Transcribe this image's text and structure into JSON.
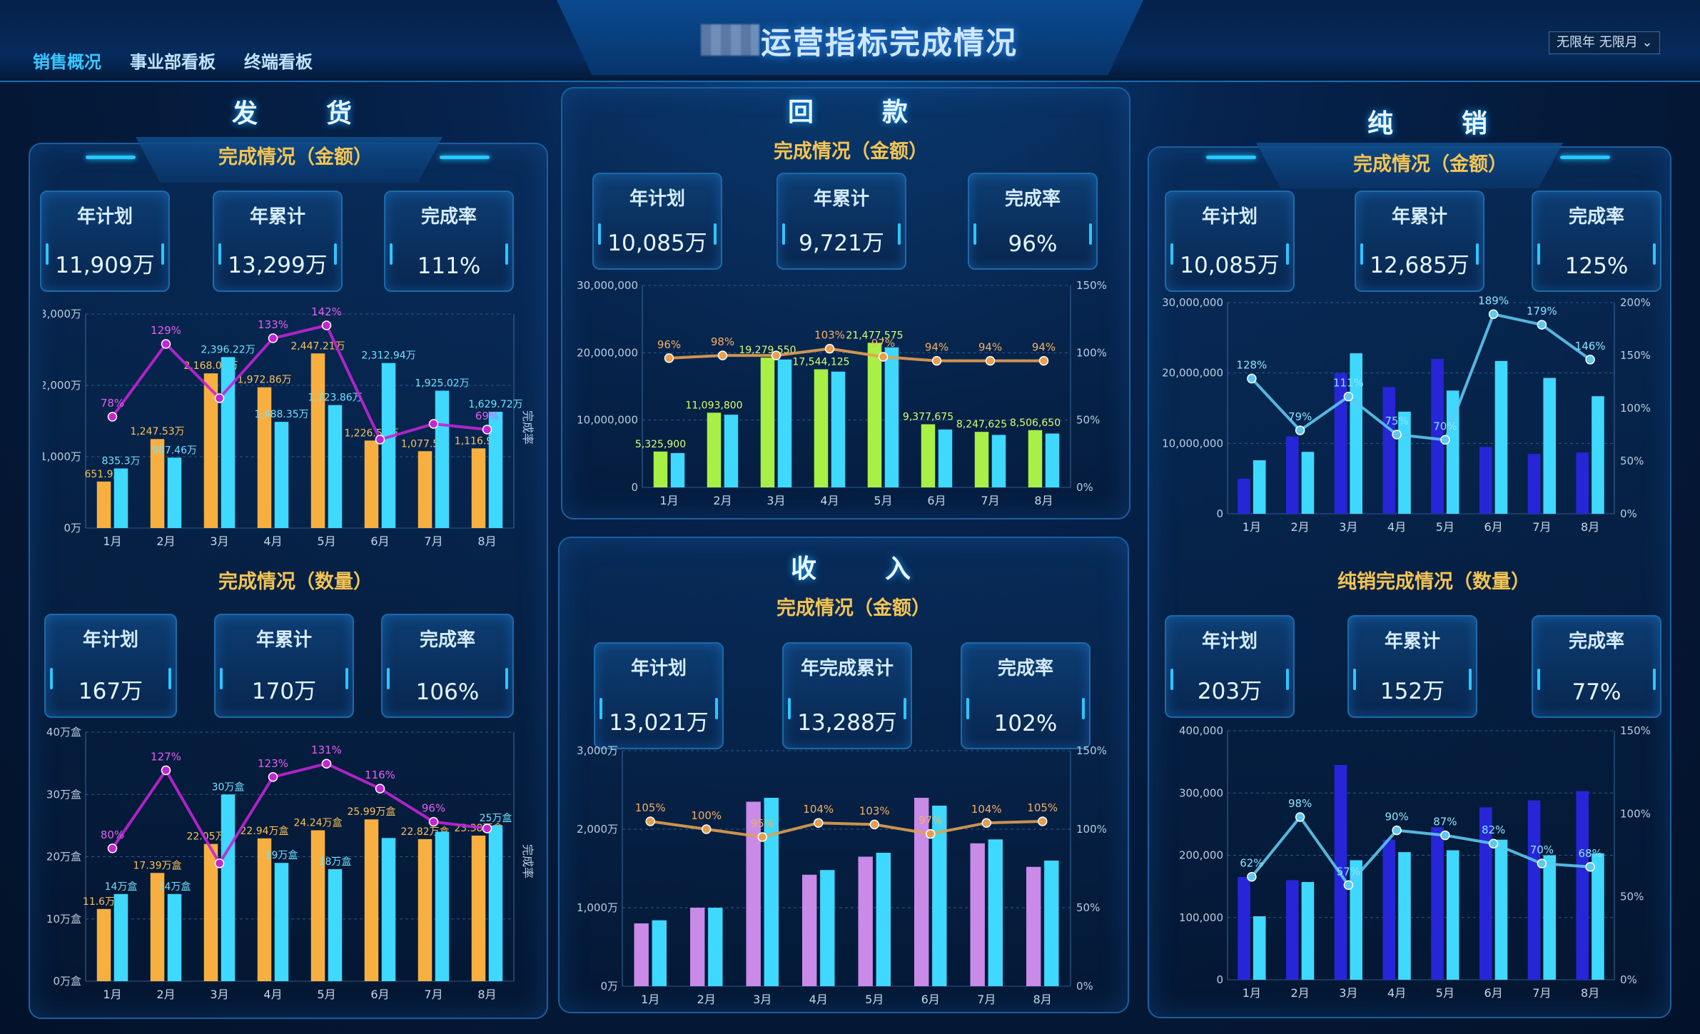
{
  "header": {
    "title": "运营指标完成情况",
    "tabs": [
      "销售概况",
      "事业部看板",
      "终端看板"
    ],
    "filter": {
      "year": "无限年",
      "month": "无限月"
    }
  },
  "fh": {
    "title": "发　货",
    "amt": {
      "title": "完成情况（金额）",
      "kpis": [
        {
          "label": "年计划",
          "value": "11,909万"
        },
        {
          "label": "年累计",
          "value": "13,299万"
        },
        {
          "label": "完成率",
          "value": "111%"
        }
      ]
    },
    "qty": {
      "title": "完成情况（数量）",
      "kpis": [
        {
          "label": "年计划",
          "value": "167万"
        },
        {
          "label": "年累计",
          "value": "170万"
        },
        {
          "label": "完成率",
          "value": "106%"
        }
      ]
    }
  },
  "hk": {
    "title": "回　款",
    "sub": "完成情况（金额）",
    "kpis": [
      {
        "label": "年计划",
        "value": "10,085万"
      },
      {
        "label": "年累计",
        "value": "9,721万"
      },
      {
        "label": "完成率",
        "value": "96%"
      }
    ]
  },
  "sr": {
    "title": "收　入",
    "sub": "完成情况（金额）",
    "kpis": [
      {
        "label": "年计划",
        "value": "13,021万"
      },
      {
        "label": "年完成累计",
        "value": "13,288万"
      },
      {
        "label": "完成率",
        "value": "102%"
      }
    ]
  },
  "cx": {
    "title": "纯　销",
    "amt": {
      "title": "完成情况（金额）",
      "kpis": [
        {
          "label": "年计划",
          "value": "10,085万"
        },
        {
          "label": "年累计",
          "value": "12,685万"
        },
        {
          "label": "完成率",
          "value": "125%"
        }
      ]
    },
    "qty": {
      "title": "纯销完成情况（数量）",
      "kpis": [
        {
          "label": "年计划",
          "value": "203万"
        },
        {
          "label": "年累计",
          "value": "152万"
        },
        {
          "label": "完成率",
          "value": "77%"
        }
      ]
    }
  },
  "chart_data": [
    {
      "id": "fh_amt",
      "type": "bar",
      "categories": [
        "1月",
        "2月",
        "3月",
        "4月",
        "5月",
        "6月",
        "7月",
        "8月"
      ],
      "yticks": [
        "0万",
        "1,000万",
        "2,000万",
        "3,000万"
      ],
      "ymax": 3000,
      "y2label": "完成率",
      "colors": [
        "#f7b040",
        "#3fd8ff"
      ],
      "line_color": "#c224d6",
      "series": [
        {
          "values": [
            651.9,
            1247.53,
            2168.06,
            1972.86,
            2447.21,
            1226.52,
            1077.5,
            1116.9
          ]
        },
        {
          "values": [
            835.3,
            987.46,
            2396.22,
            1488.35,
            1723.86,
            2312.94,
            1925.02,
            1629.72
          ]
        }
      ],
      "labels": [
        [
          "651.9万",
          "1,247.53万",
          "2,168.06万",
          "1,972.86万",
          "2,447.21万",
          "1,226.52万",
          "1,077.5万",
          "1,116.9万"
        ],
        [
          "835.3万",
          "987.46万",
          "2,396.22万",
          "1,488.35万",
          "1,723.86万",
          "2,312.94万",
          "1,925.02万",
          "1,629.72万"
        ]
      ],
      "rate": [
        78,
        129,
        91,
        133,
        142,
        62,
        73,
        69
      ],
      "rate_labels": [
        "78%",
        "129%",
        "",
        "133%",
        "142%",
        "",
        "",
        "69%"
      ],
      "ymax2": 150
    },
    {
      "id": "fh_qty",
      "type": "bar",
      "categories": [
        "1月",
        "2月",
        "3月",
        "4月",
        "5月",
        "6月",
        "7月",
        "8月"
      ],
      "yticks": [
        "0万盒",
        "10万盒",
        "20万盒",
        "30万盒",
        "40万盒"
      ],
      "ymax": 40,
      "y2label": "完成率",
      "colors": [
        "#f7b040",
        "#3fd8ff"
      ],
      "line_color": "#c224d6",
      "series": [
        {
          "values": [
            11.6,
            17.39,
            22.05,
            22.94,
            24.24,
            25.99,
            22.82,
            23.38
          ]
        },
        {
          "values": [
            14,
            14,
            30,
            19,
            18,
            23,
            24,
            25
          ]
        }
      ],
      "labels": [
        [
          "11.6万盒",
          "17.39万盒",
          "22.05万盒",
          "22.94万盒",
          "24.24万盒",
          "25.99万盒",
          "22.82万盒",
          "23.38万盒"
        ],
        [
          "14万盒",
          "14万盒",
          "30万盒",
          "19万盒",
          "18万盒",
          "",
          "",
          "25万盒"
        ]
      ],
      "rate": [
        80,
        127,
        71,
        123,
        131,
        116,
        96,
        92
      ],
      "rate_labels": [
        "80%",
        "127%",
        "",
        "123%",
        "131%",
        "116%",
        "96%",
        ""
      ],
      "ymax2": 150
    },
    {
      "id": "hk",
      "type": "bar",
      "categories": [
        "1月",
        "2月",
        "3月",
        "4月",
        "5月",
        "6月",
        "7月",
        "8月"
      ],
      "yticks": [
        "0",
        "10,000,000",
        "20,000,000",
        "30,000,000"
      ],
      "ymax": 30000000,
      "y2ticks": [
        "0%",
        "50%",
        "100%",
        "150%"
      ],
      "colors": [
        "#a8f045",
        "#3fd8ff"
      ],
      "line_color": "#e8a050",
      "series": [
        {
          "values": [
            5325900,
            11093800,
            19279550,
            17544125,
            21477575,
            9377675,
            8247625,
            8506650
          ]
        },
        {
          "values": [
            5100000,
            10800000,
            19000000,
            17200000,
            20800000,
            8600000,
            7800000,
            8000000
          ]
        }
      ],
      "labels": [
        [
          "5,325,900",
          "11,093,800",
          "19,279,550",
          "17,544,125",
          "21,477,575",
          "9,377,675",
          "8,247,625",
          "8,506,650"
        ],
        []
      ],
      "rate": [
        96,
        98,
        98,
        103,
        97,
        94,
        94,
        94
      ],
      "rate_labels": [
        "96%",
        "98%",
        "",
        "103%",
        "97%",
        "94%",
        "94%",
        "94%"
      ],
      "ymax2": 150
    },
    {
      "id": "sr",
      "type": "bar",
      "categories": [
        "1月",
        "2月",
        "3月",
        "4月",
        "5月",
        "6月",
        "7月",
        "8月"
      ],
      "yticks": [
        "0万",
        "1,000万",
        "2,000万",
        "3,000万"
      ],
      "ymax": 3000,
      "y2ticks": [
        "0%",
        "50%",
        "100%",
        "150%"
      ],
      "colors": [
        "#c98ae8",
        "#3fd8ff"
      ],
      "line_color": "#e0a050",
      "series": [
        {
          "values": [
            800,
            1000,
            2350,
            1420,
            1650,
            2400,
            1820,
            1520
          ]
        },
        {
          "values": [
            840,
            1000,
            2400,
            1480,
            1700,
            2300,
            1870,
            1600
          ]
        }
      ],
      "labels": [
        [],
        []
      ],
      "rate": [
        105,
        100,
        95,
        104,
        103,
        97,
        104,
        105
      ],
      "rate_labels": [
        "105%",
        "100%",
        "95%",
        "104%",
        "103%",
        "97%",
        "104%",
        "105%"
      ],
      "ymax2": 150
    },
    {
      "id": "cx_amt",
      "type": "bar",
      "categories": [
        "1月",
        "2月",
        "3月",
        "4月",
        "5月",
        "6月",
        "7月",
        "8月"
      ],
      "yticks": [
        "0",
        "10,000,000",
        "20,000,000",
        "30,000,000"
      ],
      "ymax": 30000000,
      "y2ticks": [
        "0%",
        "50%",
        "100%",
        "150%",
        "200%"
      ],
      "colors": [
        "#2626d8",
        "#3fd8ff"
      ],
      "line_color": "#5ec8f0",
      "series": [
        {
          "values": [
            5000000,
            11000000,
            20000000,
            18000000,
            22000000,
            9500000,
            8500000,
            8700000
          ]
        },
        {
          "values": [
            7600000,
            8800000,
            22800000,
            14500000,
            17500000,
            21700000,
            19300000,
            16700000
          ]
        }
      ],
      "labels": [
        [],
        []
      ],
      "rate": [
        128,
        79,
        111,
        75,
        70,
        189,
        179,
        146
      ],
      "rate_labels": [
        "128%",
        "79%",
        "111%",
        "75%",
        "70%",
        "189%",
        "179%",
        "146%"
      ],
      "ymax2": 200
    },
    {
      "id": "cx_qty",
      "type": "bar",
      "categories": [
        "1月",
        "2月",
        "3月",
        "4月",
        "5月",
        "6月",
        "7月",
        "8月"
      ],
      "yticks": [
        "0",
        "100,000",
        "200,000",
        "300,000",
        "400,000"
      ],
      "ymax": 400000,
      "y2ticks": [
        "0%",
        "50%",
        "100%",
        "150%"
      ],
      "colors": [
        "#2626d8",
        "#3fd8ff"
      ],
      "line_color": "#5ec8f0",
      "series": [
        {
          "values": [
            165000,
            160000,
            345000,
            225000,
            245000,
            277000,
            288000,
            303000
          ]
        },
        {
          "values": [
            102000,
            157000,
            192000,
            205000,
            208000,
            225000,
            200000,
            203000
          ]
        }
      ],
      "labels": [
        [],
        []
      ],
      "rate": [
        62,
        98,
        57,
        90,
        87,
        82,
        70,
        68
      ],
      "rate_labels": [
        "62%",
        "98%",
        "57%",
        "90%",
        "87%",
        "82%",
        "70%",
        "68%"
      ],
      "ymax2": 150
    }
  ]
}
